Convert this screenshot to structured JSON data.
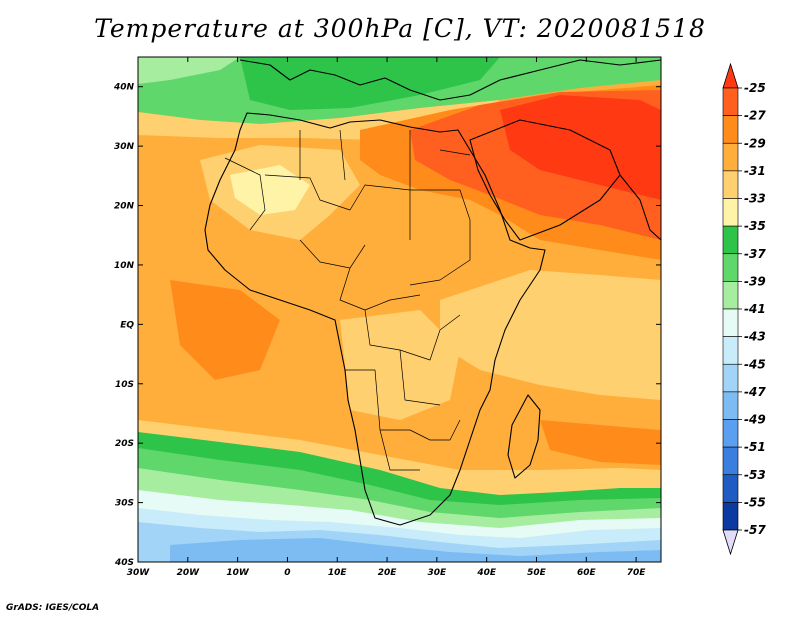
{
  "title": "Temperature at 300hPa [C], VT: 2020081518",
  "credit": "GrADS: IGES/COLA",
  "map": {
    "variable": "Temperature",
    "level": "300hPa",
    "units": "C",
    "valid_time": "2020081518",
    "lat_range": [
      -40,
      45
    ],
    "lon_range": [
      -30,
      75
    ],
    "lat_ticks": [
      "40N",
      "30N",
      "20N",
      "10N",
      "EQ",
      "10S",
      "20S",
      "30S",
      "40S"
    ],
    "lat_values": [
      40,
      30,
      20,
      10,
      0,
      -10,
      -20,
      -30,
      -40
    ],
    "lon_ticks": [
      "30W",
      "20W",
      "10W",
      "0",
      "10E",
      "20E",
      "30E",
      "40E",
      "50E",
      "60E",
      "70E"
    ],
    "lon_values": [
      -30,
      -20,
      -10,
      0,
      10,
      20,
      30,
      40,
      50,
      60,
      70
    ]
  },
  "colorbar": {
    "labels": [
      "-25",
      "-27",
      "-29",
      "-31",
      "-33",
      "-35",
      "-37",
      "-39",
      "-41",
      "-43",
      "-45",
      "-47",
      "-49",
      "-51",
      "-53",
      "-55",
      "-57"
    ],
    "colors": [
      "#ff3a12",
      "#ff6020",
      "#ff8c1a",
      "#ffae3c",
      "#ffd070",
      "#fff3a8",
      "#2ec44a",
      "#5fd76a",
      "#a6eda0",
      "#e6fbf5",
      "#c8ecfa",
      "#a2d4f8",
      "#7cbcf2",
      "#5a9ff0",
      "#3a7ee0",
      "#1e5cc4",
      "#0c3aa0",
      "#0a1a70",
      "#e0dcfa"
    ]
  }
}
